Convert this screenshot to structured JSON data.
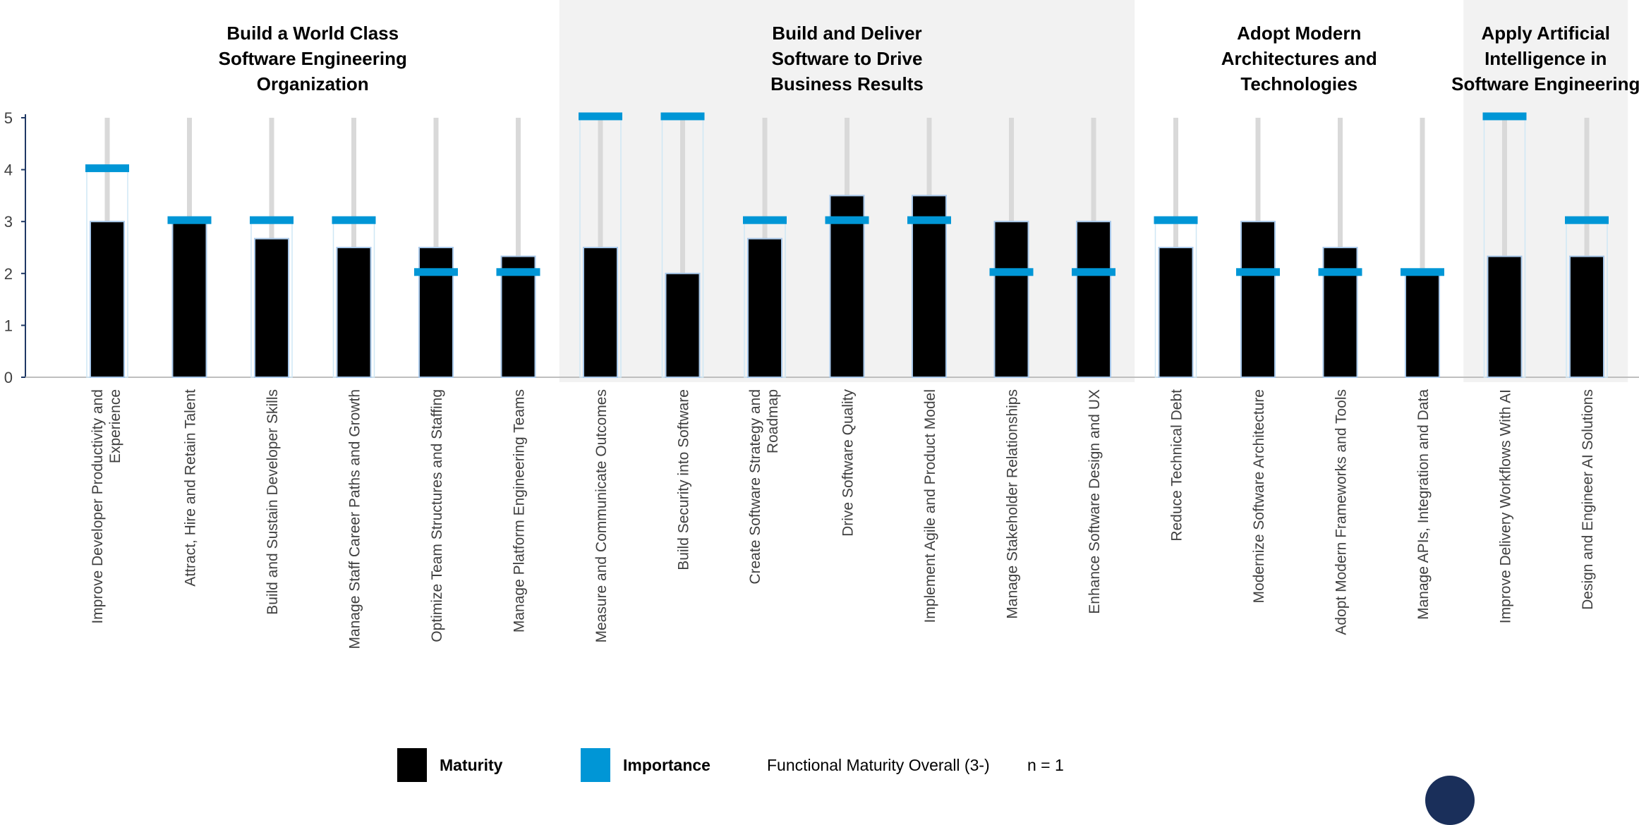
{
  "chart_data": {
    "type": "bar",
    "ylim": [
      0,
      5
    ],
    "yticks": [
      "0",
      "1",
      "2",
      "3",
      "4",
      "5"
    ],
    "groups": [
      {
        "title": [
          "Build a World Class",
          "Software Engineering",
          "Organization"
        ],
        "shaded": false,
        "start": 0,
        "count": 6
      },
      {
        "title": [
          "Build and Deliver",
          "Software to Drive",
          "Business Results"
        ],
        "shaded": true,
        "start": 6,
        "count": 7
      },
      {
        "title": [
          "Adopt Modern",
          "Architectures and",
          "Technologies"
        ],
        "shaded": false,
        "start": 13,
        "count": 4
      },
      {
        "title": [
          "Apply Artificial",
          "Intelligence in",
          "Software Engineering"
        ],
        "shaded": true,
        "start": 17,
        "count": 2
      }
    ],
    "categories": [
      [
        "Improve Developer Productivity and",
        "Experience"
      ],
      [
        "Attract, Hire and Retain Talent"
      ],
      [
        "Build and Sustain Developer Skills"
      ],
      [
        "Manage Staff Career Paths and Growth"
      ],
      [
        "Optimize Team Structures and Staffing"
      ],
      [
        "Manage Platform Engineering Teams"
      ],
      [
        "Measure and Communicate Outcomes"
      ],
      [
        "Build Security into Software"
      ],
      [
        "Create Software Strategy and",
        "Roadmap"
      ],
      [
        "Drive Software Quality"
      ],
      [
        "Implement Agile and Product Model"
      ],
      [
        "Manage Stakeholder Relationships"
      ],
      [
        "Enhance Software Design and UX"
      ],
      [
        "Reduce Technical Debt"
      ],
      [
        "Modernize Software Architecture"
      ],
      [
        "Adopt Modern Frameworks and Tools"
      ],
      [
        "Manage APIs, Integration and Data"
      ],
      [
        "Improve Delivery Workflows With AI"
      ],
      [
        "Design and Engineer AI Solutions"
      ]
    ],
    "series": [
      {
        "name": "Maturity",
        "color": "#000000",
        "values": [
          3,
          3,
          2.67,
          2.5,
          2.5,
          2.33,
          2.5,
          2,
          2.67,
          3.5,
          3.5,
          3,
          3,
          2.5,
          3,
          2.5,
          2,
          2.33,
          2.33
        ]
      },
      {
        "name": "Importance",
        "color": "#0096d6",
        "values": [
          4,
          3,
          3,
          3,
          2,
          2,
          5,
          5,
          3,
          3,
          3,
          2,
          2,
          3,
          2,
          2,
          2,
          5,
          3
        ]
      }
    ],
    "colors": {
      "maturity": "#000000",
      "importance": "#0096d6",
      "shade": "#f2f2f2",
      "rail": "#d9d9d9"
    }
  },
  "legend": {
    "maturity_label": "Maturity",
    "importance_label": "Importance",
    "description": "Functional Maturity Overall (3-)",
    "n_label": "n = 1"
  }
}
